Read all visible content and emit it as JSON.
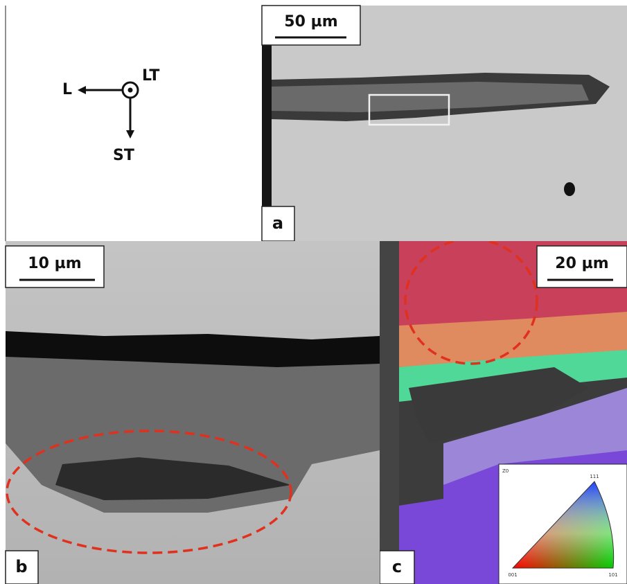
{
  "axes_legend": {
    "l": "L",
    "lt": "LT",
    "st": "ST"
  },
  "panels": [
    {
      "label": "a",
      "scale_bar": "50 µm"
    },
    {
      "label": "b",
      "scale_bar": "10 µm"
    },
    {
      "label": "c",
      "scale_bar": "20 µm"
    }
  ],
  "ipf_key": {
    "title": "Z0",
    "corners": [
      "001",
      "101",
      "111"
    ]
  }
}
